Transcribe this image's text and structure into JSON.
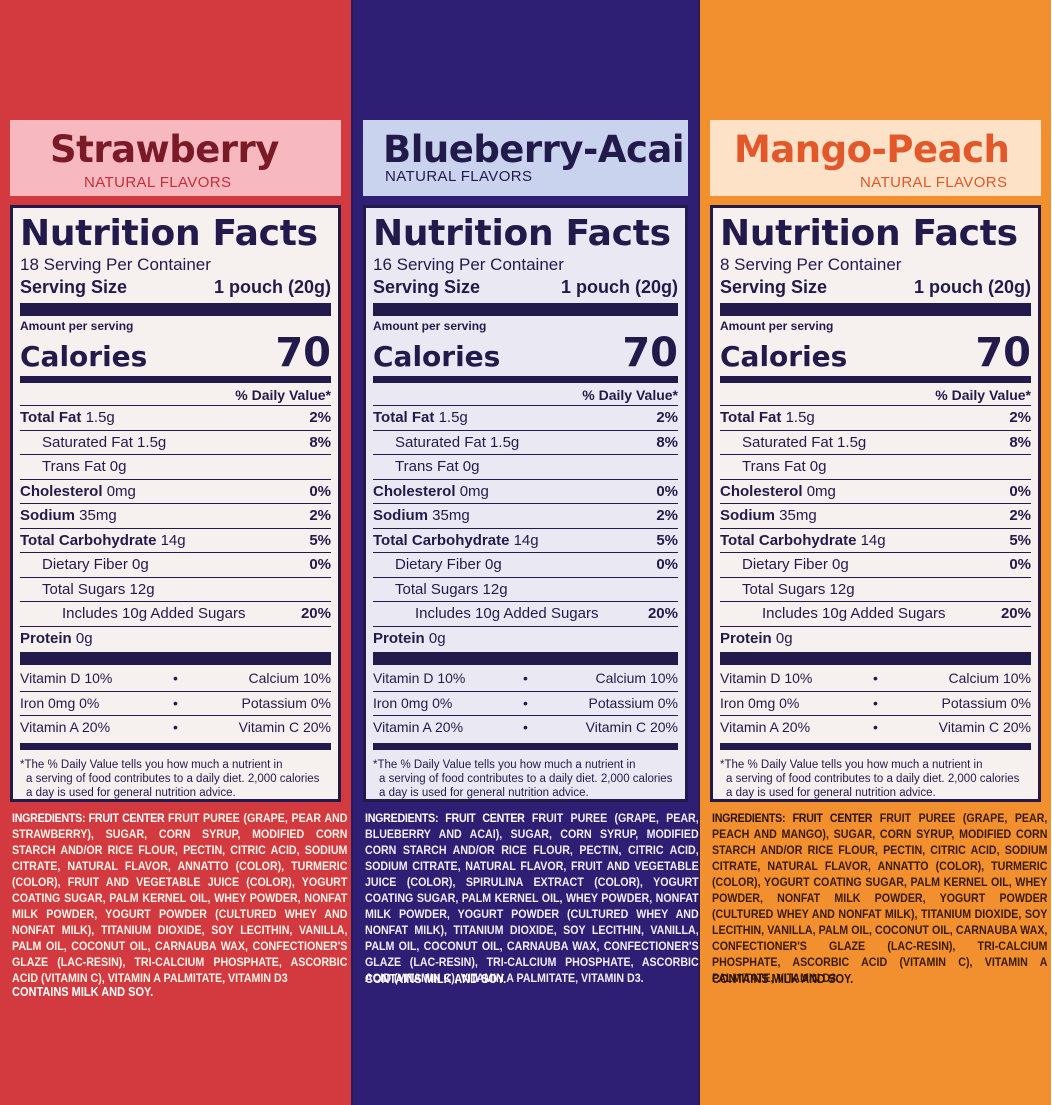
{
  "colors": {
    "navy": "#231a4c",
    "strawberry_bg": "#d33a3f",
    "blueberry_bg": "#2e1e74",
    "mango_bg": "#f2902f"
  },
  "panels": [
    {
      "flavor": "Strawberry",
      "natural": "NATURAL FLAVORS",
      "servings": "18 Serving Per Container",
      "ingredients_head": "INGREDIENTS: FRUIT CENTER",
      "ingredients": "FRUIT PUREE (GRAPE, PEAR AND STRAWBERRY), SUGAR, CORN SYRUP, MODIFIED CORN STARCH AND/OR RICE FLOUR, PECTIN, CITRIC ACID, SODIUM CITRATE, NATURAL FLAVOR, ANNATTO (COLOR), TURMERIC (COLOR), FRUIT AND VEGETABLE JUICE (COLOR), YOGURT COATING SUGAR, PALM KERNEL OIL, WHEY POWDER, NONFAT MILK POWDER, YOGURT POWDER (CULTURED WHEY AND NONFAT MILK), TITANIUM DIOXIDE, SOY LECITHIN, VANILLA, PALM OIL, COCONUT OIL, CARNAUBA WAX, CONFECTIONER'S GLAZE (LAC-RESIN), TRI-CALCIUM PHOSPHATE, ASCORBIC ACID (VITAMIN C), VITAMIN A PALMITATE, VITAMIN D3",
      "contains": "CONTAINS MILK AND SOY."
    },
    {
      "flavor": "Blueberry-Acai",
      "natural": "NATURAL FLAVORS",
      "servings": "16 Serving Per Container",
      "ingredients_head": "INGREDIENTS: FRUIT CENTER",
      "ingredients": "FRUIT PUREE (GRAPE, PEAR, BLUEBERRY AND ACAI), SUGAR, CORN SYRUP, MODIFIED CORN STARCH AND/OR RICE FLOUR, PECTIN, CITRIC ACID, SODIUM CITRATE, NATURAL FLAVOR, FRUIT AND VEGETABLE JUICE (COLOR), SPIRULINA EXTRACT (COLOR), YOGURT COATING SUGAR, PALM KERNEL OIL, WHEY POWDER, NONFAT MILK POWDER, YOGURT POWDER (CULTURED WHEY AND NONFAT MILK), TITANIUM DIOXIDE, SOY LECITHIN, VANILLA, PALM OIL, COCONUT OIL, CARNAUBA WAX, CONFECTIONER'S GLAZE (LAC-RESIN), TRI-CALCIUM PHOSPHATE, ASCORBIC ACID (VITAMIN C), VITAMIN A PALMITATE, VITAMIN D3.",
      "contains": "CONTAINS MILK AND SOY."
    },
    {
      "flavor": "Mango-Peach",
      "natural": "NATURAL FLAVORS",
      "servings": "8 Serving Per Container",
      "ingredients_head": "INGREDIENTS: FRUIT CENTER",
      "ingredients": "FRUIT PUREE (GRAPE, PEAR, PEACH AND MANGO), SUGAR, CORN SYRUP, MODIFIED CORN STARCH AND/OR RICE FLOUR, PECTIN, CITRIC ACID, SODIUM CITRATE, NATURAL FLAVOR, ANNATTO (COLOR), TURMERIC (COLOR), YOGURT COATING SUGAR, PALM KERNEL OIL, WHEY POWDER, NONFAT MILK POWDER, YOGURT POWDER (CULTURED WHEY AND NONFAT MILK), TITANIUM DIOXIDE, SOY LECITHIN, VANILLA, PALM OIL, COCONUT OIL, CARNAUBA WAX, CONFECTIONER'S GLAZE (LAC-RESIN), TRI-CALCIUM PHOSPHATE, ASCORBIC ACID (VITAMIN C), VITAMIN A PALMITATE, VITAMIN D3.",
      "contains": "CONTAINS MILK AND SOY."
    }
  ],
  "label": {
    "title": "Nutrition Facts",
    "serving_size_label": "Serving Size",
    "serving_size_value": "1 pouch (20g)",
    "amount_per_serving": "Amount per serving",
    "calories_label": "Calories",
    "calories_value": "70",
    "dv_header": "% Daily Value*",
    "total_fat": "Total Fat",
    "total_fat_amt": "1.5g",
    "total_fat_pct": "2%",
    "sat_fat": "Saturated Fat 1.5g",
    "sat_fat_pct": "8%",
    "trans_fat": "Trans Fat 0g",
    "cholesterol": "Cholesterol",
    "cholesterol_amt": "0mg",
    "cholesterol_pct": "0%",
    "sodium": "Sodium",
    "sodium_amt": "35mg",
    "sodium_pct": "2%",
    "carb": "Total Carbohydrate",
    "carb_amt": "14g",
    "carb_pct": "5%",
    "fiber": "Dietary Fiber 0g",
    "fiber_pct": "0%",
    "sugars": "Total Sugars 12g",
    "added_sugars": "Includes 10g Added Sugars",
    "added_sugars_pct": "20%",
    "protein": "Protein",
    "protein_amt": "0g",
    "vit_d": "Vitamin D  10%",
    "calcium": "Calcium  10%",
    "iron": "Iron 0mg 0%",
    "potassium": "Potassium 0%",
    "vit_a": "Vitamin A 20%",
    "vit_c": "Vitamin C 20%",
    "bullet": "•",
    "footnote_1": "*The % Daily Value tells you how much a nutrient in",
    "footnote_2": "a serving of food contributes to a daily diet. 2,000 calories",
    "footnote_3": "a day is used for general nutrition advice."
  }
}
